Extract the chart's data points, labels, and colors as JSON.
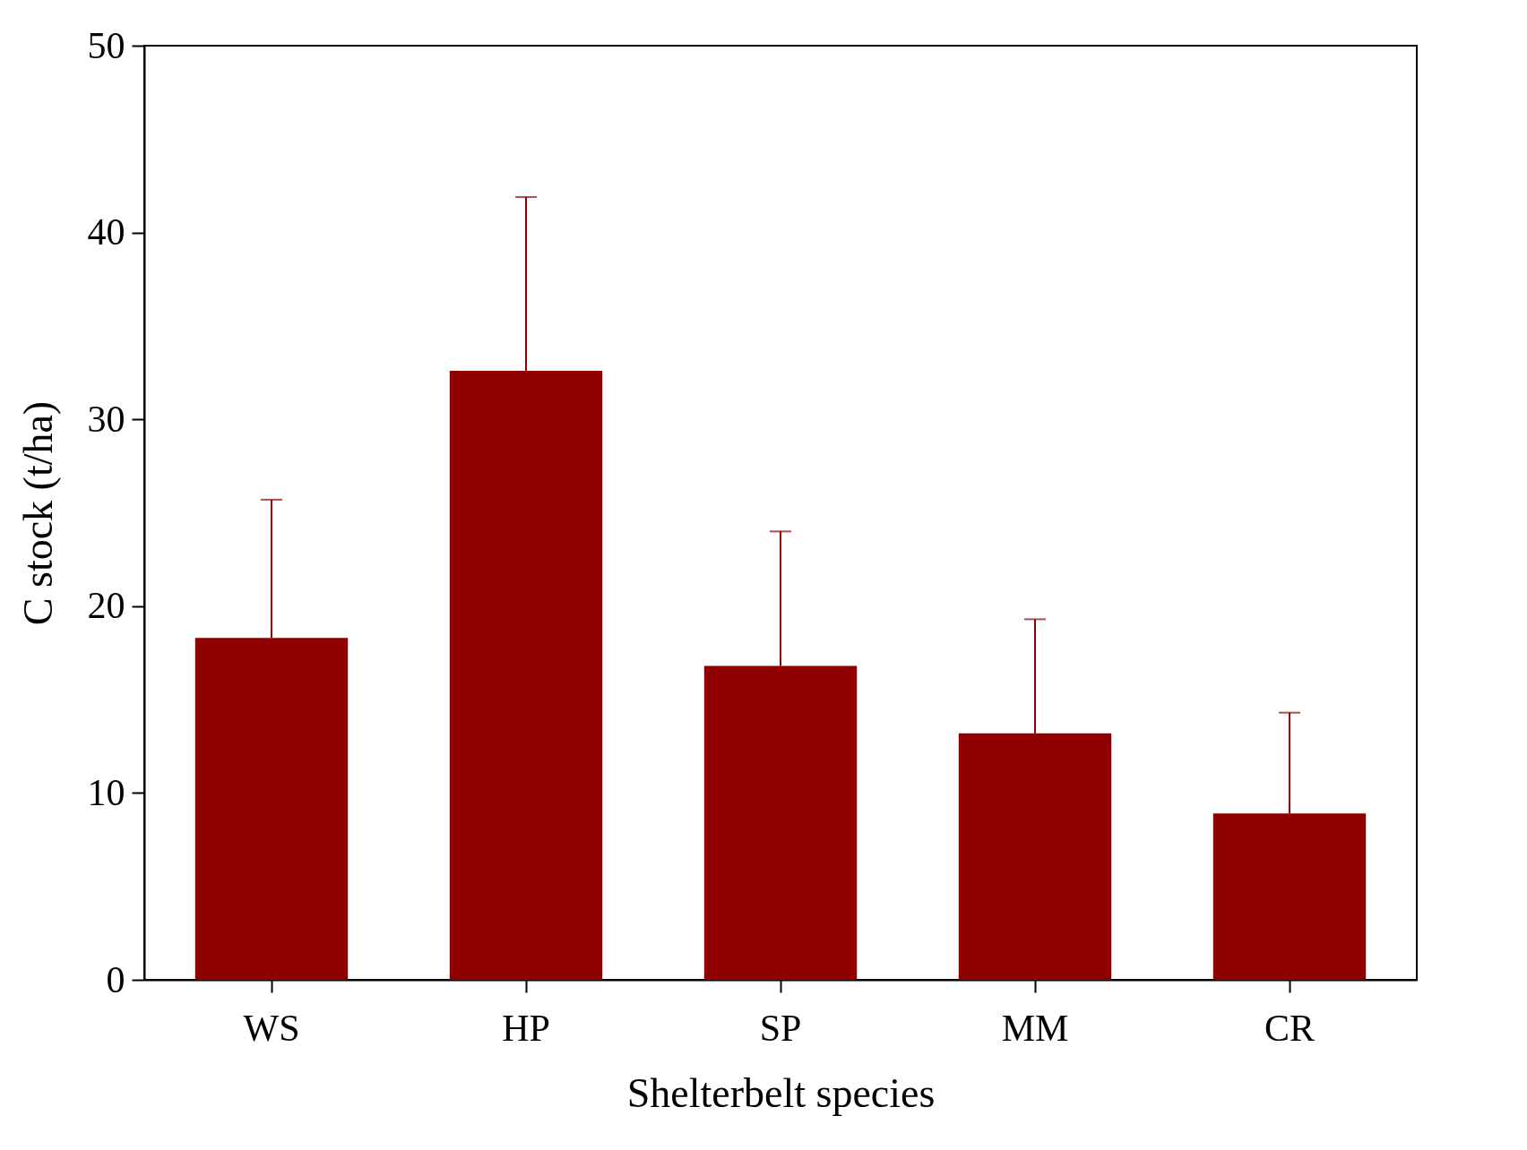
{
  "chart_data": {
    "type": "bar",
    "xlabel": "Shelterbelt species",
    "ylabel": "C stock (t/ha)",
    "categories": [
      "WS",
      "HP",
      "SP",
      "MM",
      "CR"
    ],
    "values": [
      18.3,
      32.6,
      16.8,
      13.2,
      8.9
    ],
    "errors": [
      [
        18.3,
        25.7
      ],
      [
        32.6,
        41.9
      ],
      [
        16.8,
        24.0
      ],
      [
        13.2,
        19.3
      ],
      [
        8.9,
        14.3
      ]
    ],
    "color": "#900000",
    "ylim": [
      0,
      50
    ],
    "yticks": [
      0,
      10,
      20,
      30,
      40,
      50
    ],
    "grid": false
  }
}
